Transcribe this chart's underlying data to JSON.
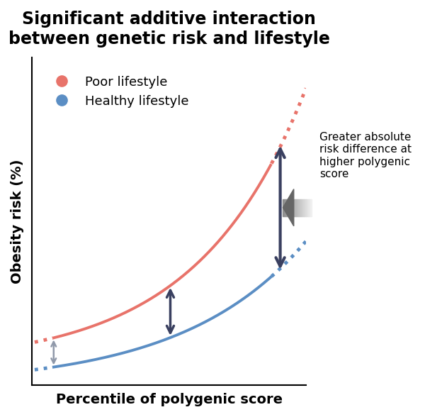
{
  "title_line1": "Significant additive interaction",
  "title_line2": "between genetic risk and lifestyle",
  "xlabel": "Percentile of polygenic score",
  "ylabel": "Obesity risk (%)",
  "legend_poor": "Poor lifestyle",
  "legend_healthy": "Healthy lifestyle",
  "poor_color": "#E8736A",
  "healthy_color": "#5B8EC4",
  "arrow_color": "#3A4060",
  "arrow_color_small": "#9099AA",
  "annotation_text": "Greater absolute\nrisk difference at\nhigher polygenic\nscore",
  "bg_color": "#FFFFFF",
  "title_fontsize": 17,
  "label_fontsize": 14,
  "legend_fontsize": 13
}
